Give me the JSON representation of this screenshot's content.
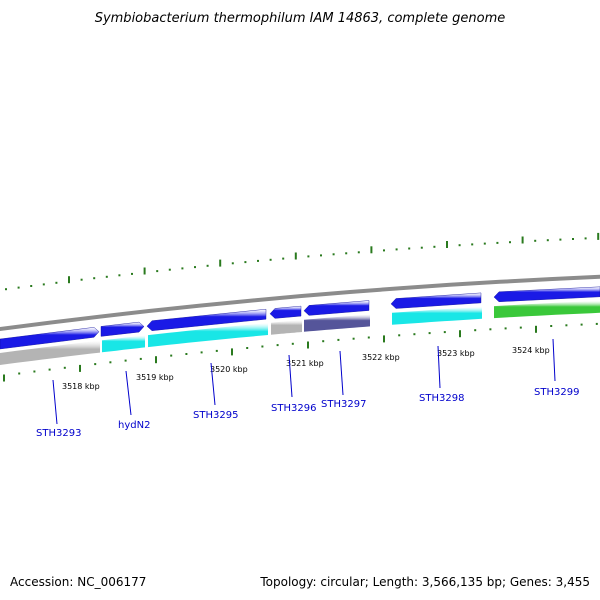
{
  "title": "Symbiobacterium thermophilum IAM 14863, complete genome",
  "footer": {
    "accession": "Accession: NC_006177",
    "info": "Topology: circular; Length: 3,566,135 bp; Genes: 3,455"
  },
  "colors": {
    "backbone": "#8c8c8c",
    "tick": "#2a7a1e",
    "forward_gene": "#1a1ae6",
    "gene_label": "#0000cc",
    "leader_line": "#0000cc",
    "cyan": "#19e6e6",
    "gray": "#b4b4b4",
    "purple": "#55559a",
    "green": "#3ac83a"
  },
  "scale": {
    "labels": [
      "3518 kbp",
      "3519 kbp",
      "3520 kbp",
      "3521 kbp",
      "3522 kbp",
      "3523 kbp",
      "3524 kbp"
    ]
  },
  "genes": [
    "STH3293",
    "hydN2",
    "STH3295",
    "STH3296",
    "STH3297",
    "STH3298",
    "STH3299"
  ]
}
